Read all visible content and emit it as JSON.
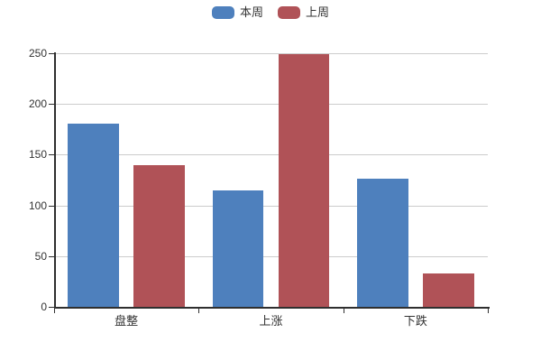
{
  "chart_data": {
    "type": "bar",
    "title": "",
    "xlabel": "",
    "ylabel": "",
    "categories": [
      "盘整",
      "上涨",
      "下跌"
    ],
    "series": [
      {
        "name": "本周",
        "color": "#4e80bd",
        "values": [
          181,
          115,
          126
        ]
      },
      {
        "name": "上周",
        "color": "#b05257",
        "values": [
          140,
          249,
          33
        ]
      }
    ],
    "ylim": [
      0,
      250
    ],
    "yticks": [
      0,
      50,
      100,
      150,
      200,
      250
    ],
    "grid": true,
    "legend_position": "top-center",
    "background_color": "#ffffff",
    "grid_color": "#cccccc",
    "axis_color": "#2f2f2f",
    "text_color": "#333333"
  }
}
